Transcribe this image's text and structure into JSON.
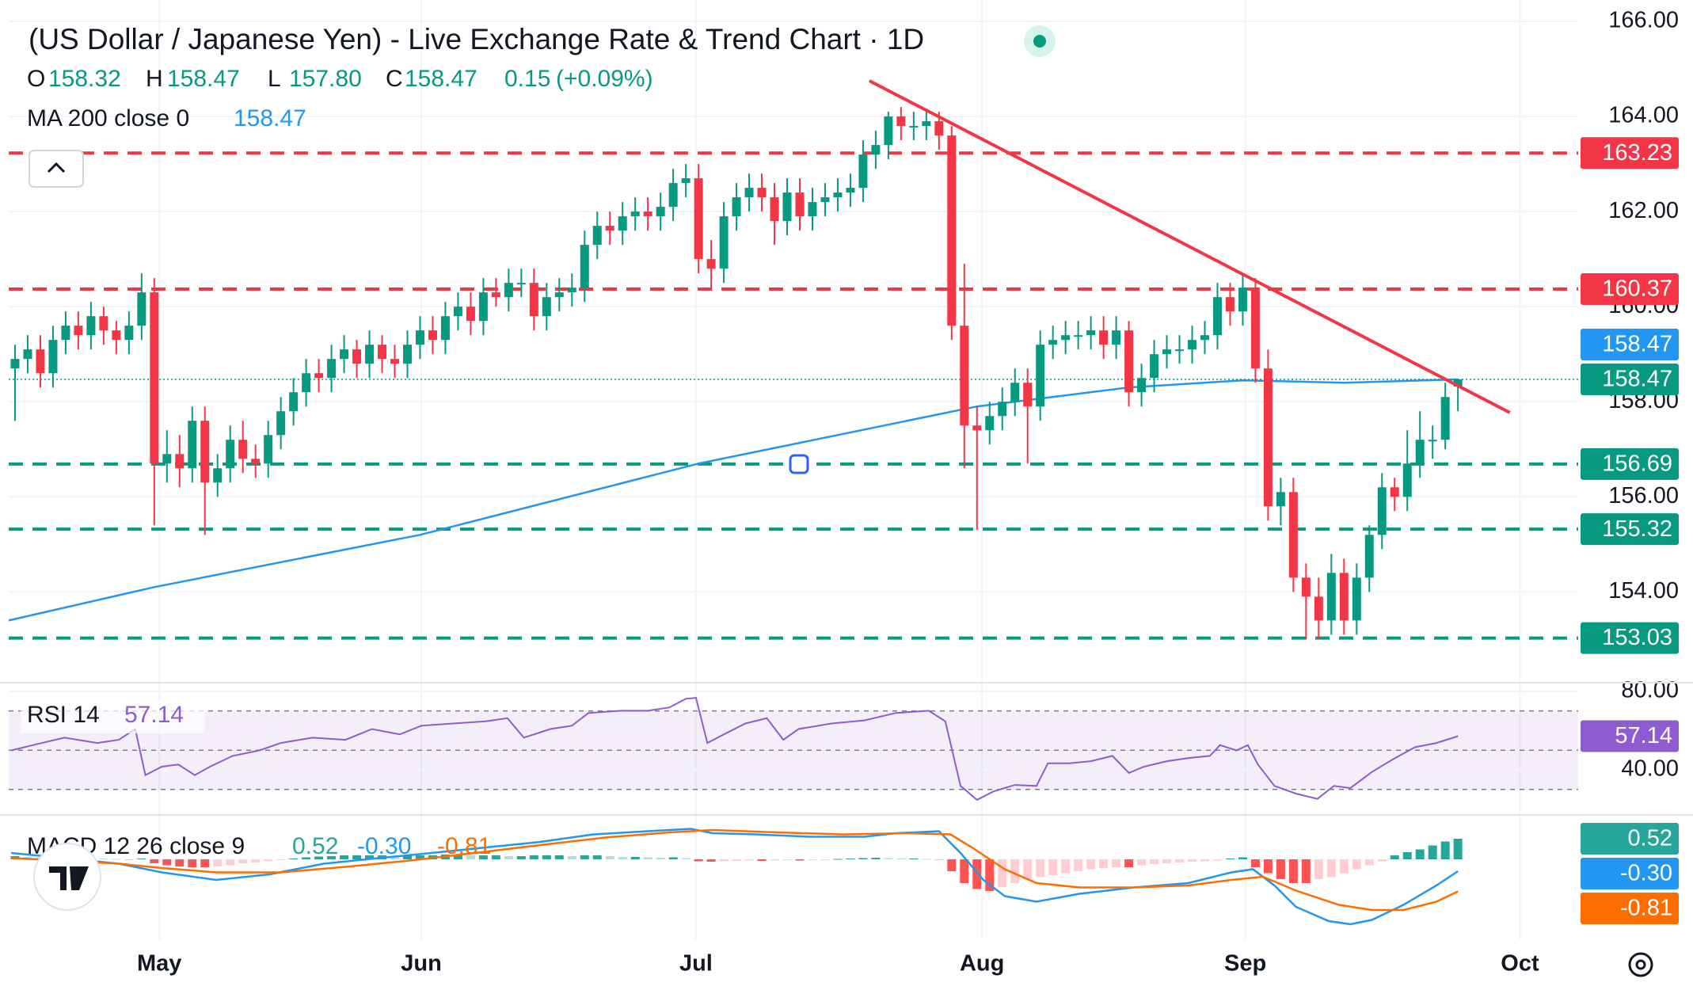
{
  "chart_data": {
    "type": "candlestick",
    "title": "(US Dollar / Japanese Yen) - Live Exchange Rate & Trend Chart · 1D",
    "ohlc_legend": [
      "O",
      "158.32",
      "H",
      "158.47",
      "L",
      "157.80",
      "C",
      "158.47",
      "0.15",
      "(+0.09%)"
    ],
    "xlim": [
      -0.5,
      123.5
    ],
    "xticks": [
      {
        "value": 11.4,
        "label": "May"
      },
      {
        "value": 32.1,
        "label": "Jun"
      },
      {
        "value": 53.8,
        "label": "Jul"
      },
      {
        "value": 76.4,
        "label": "Aug"
      },
      {
        "value": 97.2,
        "label": "Sep"
      },
      {
        "value": 118.9,
        "label": "Oct"
      }
    ],
    "ylim": [
      152.09,
      166.45
    ],
    "yticks": [
      {
        "value": 154,
        "label": "154.00"
      },
      {
        "value": 156,
        "label": "156.00"
      },
      {
        "value": 158,
        "label": "158.00"
      },
      {
        "value": 160,
        "label": "160.00"
      },
      {
        "value": 162,
        "label": "162.00"
      },
      {
        "value": 164,
        "label": "164.00"
      },
      {
        "value": 166,
        "label": "166.00"
      }
    ],
    "grid": true,
    "colors": {
      "up": "#089981",
      "down": "#f23645"
    },
    "candles": {
      "open": [
        158.7,
        158.9,
        159.1,
        158.6,
        159.3,
        159.6,
        159.4,
        159.8,
        159.5,
        159.3,
        159.6,
        160.3,
        156.7,
        156.9,
        156.6,
        157.6,
        156.3,
        156.6,
        157.2,
        156.8,
        156.7,
        157.3,
        157.8,
        158.2,
        158.6,
        158.5,
        158.9,
        159.1,
        158.8,
        159.2,
        158.9,
        158.8,
        159.2,
        159.5,
        159.3,
        159.8,
        160.0,
        159.7,
        160.3,
        160.2,
        160.5,
        160.5,
        159.8,
        160.2,
        160.3,
        160.4,
        161.3,
        161.7,
        161.6,
        161.9,
        162.0,
        161.9,
        162.1,
        162.6,
        162.7,
        161.0,
        160.8,
        161.9,
        162.3,
        162.5,
        162.3,
        161.8,
        162.4,
        161.9,
        162.2,
        162.3,
        162.4,
        162.5,
        163.2,
        163.4,
        164.0,
        163.8,
        163.8,
        163.9,
        163.6,
        159.6,
        157.5,
        157.4,
        157.7,
        158.0,
        158.4,
        157.9,
        159.2,
        159.3,
        159.4,
        159.4,
        159.5,
        159.2,
        159.5,
        158.2,
        158.5,
        159.0,
        159.1,
        159.1,
        159.3,
        159.4,
        160.2,
        159.9,
        160.4,
        158.7,
        155.8,
        156.1,
        154.3,
        153.9,
        153.4,
        154.4,
        153.4,
        154.3,
        155.2,
        156.2,
        156.0,
        156.7,
        157.2,
        157.2,
        158.32
      ],
      "high": [
        159.2,
        159.4,
        159.4,
        159.6,
        159.9,
        159.9,
        160.1,
        160.0,
        159.7,
        159.9,
        160.7,
        160.6,
        157.4,
        157.3,
        157.9,
        157.9,
        156.9,
        157.5,
        157.6,
        157.1,
        157.6,
        158.1,
        158.5,
        158.9,
        158.9,
        159.2,
        159.4,
        159.3,
        159.5,
        159.4,
        159.2,
        159.5,
        159.8,
        159.8,
        160.1,
        160.3,
        160.3,
        160.6,
        160.6,
        160.8,
        160.8,
        160.8,
        160.5,
        160.6,
        160.7,
        161.6,
        162.0,
        162.0,
        162.2,
        162.3,
        162.3,
        162.4,
        162.9,
        163.0,
        163.0,
        161.4,
        162.2,
        162.6,
        162.8,
        162.8,
        162.6,
        162.7,
        162.7,
        162.5,
        162.6,
        162.7,
        162.8,
        163.5,
        163.7,
        164.1,
        164.2,
        164.1,
        164.1,
        164.1,
        163.8,
        160.9,
        157.9,
        158.0,
        158.3,
        158.7,
        158.7,
        159.5,
        159.6,
        159.7,
        159.7,
        159.8,
        159.8,
        159.8,
        159.7,
        158.8,
        159.3,
        159.4,
        159.4,
        159.6,
        159.7,
        160.5,
        160.5,
        160.7,
        160.6,
        159.1,
        156.4,
        156.4,
        154.6,
        154.3,
        154.8,
        154.7,
        154.6,
        155.4,
        156.5,
        156.4,
        157.4,
        157.8,
        157.5,
        158.4,
        158.47
      ],
      "low": [
        157.6,
        158.6,
        158.3,
        158.3,
        159.0,
        159.1,
        159.1,
        159.2,
        159.0,
        159.0,
        159.3,
        155.4,
        156.3,
        156.2,
        156.3,
        155.2,
        156.0,
        156.3,
        156.5,
        156.4,
        156.4,
        157.0,
        157.5,
        157.9,
        158.2,
        158.2,
        158.6,
        158.5,
        158.5,
        158.6,
        158.5,
        158.5,
        158.9,
        159.0,
        159.0,
        159.5,
        159.4,
        159.4,
        160.0,
        159.9,
        160.2,
        159.5,
        159.5,
        159.9,
        160.0,
        160.1,
        161.0,
        161.3,
        161.3,
        161.6,
        161.6,
        161.6,
        161.8,
        162.3,
        160.7,
        160.4,
        160.5,
        161.6,
        162.0,
        162.0,
        161.3,
        161.5,
        161.6,
        161.6,
        161.9,
        162.0,
        162.1,
        162.2,
        162.9,
        163.1,
        163.5,
        163.5,
        163.5,
        163.3,
        159.3,
        156.6,
        155.3,
        157.1,
        157.4,
        157.7,
        156.7,
        157.6,
        158.9,
        159.0,
        159.1,
        159.1,
        158.9,
        158.9,
        157.9,
        157.9,
        158.2,
        158.7,
        158.8,
        158.8,
        159.0,
        159.1,
        159.6,
        159.6,
        158.4,
        155.5,
        155.4,
        154.0,
        153.0,
        153.0,
        153.1,
        153.1,
        153.1,
        154.0,
        154.9,
        155.7,
        155.7,
        156.4,
        156.8,
        157.0,
        157.8
      ],
      "close": [
        158.9,
        159.1,
        158.6,
        159.3,
        159.6,
        159.4,
        159.8,
        159.5,
        159.3,
        159.6,
        160.3,
        156.7,
        156.9,
        156.6,
        157.6,
        156.3,
        156.6,
        157.2,
        156.8,
        156.7,
        157.3,
        157.8,
        158.2,
        158.6,
        158.5,
        158.9,
        159.1,
        158.8,
        159.2,
        158.9,
        158.8,
        159.2,
        159.5,
        159.3,
        159.8,
        160.0,
        159.7,
        160.3,
        160.2,
        160.5,
        160.5,
        159.8,
        160.2,
        160.3,
        160.4,
        161.3,
        161.7,
        161.6,
        161.9,
        162.0,
        161.9,
        162.1,
        162.6,
        162.7,
        161.0,
        160.8,
        161.9,
        162.3,
        162.5,
        162.3,
        161.8,
        162.4,
        161.9,
        162.2,
        162.3,
        162.4,
        162.5,
        163.2,
        163.4,
        164.0,
        163.8,
        163.8,
        163.9,
        163.6,
        159.6,
        157.5,
        157.4,
        157.7,
        158.0,
        158.4,
        157.9,
        159.2,
        159.3,
        159.4,
        159.4,
        159.5,
        159.2,
        159.5,
        158.2,
        158.5,
        159.0,
        159.1,
        159.1,
        159.3,
        159.4,
        160.2,
        159.9,
        160.4,
        158.7,
        155.8,
        156.1,
        154.3,
        153.9,
        153.4,
        154.4,
        153.4,
        154.3,
        155.2,
        156.2,
        156.0,
        156.7,
        157.2,
        157.2,
        158.1,
        158.47
      ]
    },
    "ma": {
      "label": "MA 200 close 0",
      "color": "#2196f3",
      "x": [
        -0.5,
        11,
        32,
        54,
        65,
        76,
        88,
        97,
        105,
        114
      ],
      "values": [
        153.4,
        154.1,
        155.2,
        156.7,
        157.3,
        157.9,
        158.3,
        158.45,
        158.4,
        158.47
      ]
    },
    "trendline": {
      "color": "#f23645",
      "x": [
        67.5,
        118.1
      ],
      "values": [
        164.75,
        157.77
      ]
    },
    "levels": [
      {
        "price": 163.23,
        "color": "#f23645"
      },
      {
        "price": 160.37,
        "color": "#f23645"
      },
      {
        "price": 156.69,
        "color": "#089981"
      },
      {
        "price": 155.32,
        "color": "#089981"
      },
      {
        "price": 153.03,
        "color": "#089981"
      }
    ],
    "rsi": {
      "label": "RSI 14",
      "color": "#8e5cd0",
      "ylim": [
        17.0,
        84.4
      ],
      "yticks": [
        {
          "value": 40,
          "label": "40.00"
        },
        {
          "value": 80,
          "label": "80.00"
        }
      ],
      "bands": [
        70,
        50,
        30
      ],
      "x": [
        -0.3,
        1.4,
        3.9,
        6.5,
        8.2,
        9.5,
        10.3,
        11.6,
        12.9,
        14.2,
        15.4,
        17.2,
        19.3,
        21.0,
        23.5,
        26.1,
        28.2,
        30.4,
        32.1,
        34.6,
        37.2,
        38.9,
        40.2,
        42.3,
        44.0,
        45.3,
        47.9,
        50.0,
        51.7,
        53.0,
        53.8,
        54.7,
        56.0,
        57.7,
        59.4,
        60.7,
        61.9,
        64.5,
        67.1,
        69.6,
        72.2,
        73.5,
        74.7,
        76.0,
        77.3,
        79.0,
        80.7,
        81.6,
        83.3,
        85.0,
        86.7,
        88.0,
        89.2,
        91.0,
        92.7,
        94.4,
        95.2,
        96.5,
        97.4,
        98.2,
        99.5,
        101.2,
        102.9,
        104.2,
        105.5,
        107.2,
        108.9,
        110.6,
        112.3,
        114
      ],
      "values": [
        49.9,
        52.6,
        56.4,
        53.7,
        55.3,
        60.8,
        37.3,
        41.6,
        42.7,
        37.3,
        41.6,
        47.1,
        49.9,
        53.7,
        56.4,
        55.3,
        60.8,
        58.1,
        62.5,
        63.6,
        64.7,
        66.3,
        56.4,
        60.8,
        62.5,
        69.0,
        70.1,
        70.1,
        71.8,
        76.2,
        76.7,
        53.7,
        58.1,
        63.6,
        66.3,
        55.3,
        60.8,
        63.6,
        65.2,
        69.0,
        70.1,
        64.7,
        31.8,
        24.7,
        29.0,
        32.3,
        31.8,
        43.3,
        43.3,
        44.4,
        47.1,
        38.4,
        41.6,
        44.4,
        46.0,
        47.1,
        52.6,
        49.9,
        52.6,
        42.7,
        31.8,
        27.9,
        25.2,
        31.8,
        30.7,
        38.9,
        45.5,
        51.5,
        53.7,
        57.14
      ]
    },
    "macd": {
      "label": "MACD 12 26 close 9",
      "ylim": [
        -2.02,
        1.12
      ],
      "histogram": [
        0.08,
        0.06,
        0.05,
        0.04,
        0.05,
        0.04,
        0.03,
        0.02,
        0.01,
        0.0,
        0.02,
        -0.1,
        -0.15,
        -0.18,
        -0.2,
        -0.2,
        -0.18,
        -0.15,
        -0.1,
        -0.08,
        -0.05,
        -0.02,
        0.02,
        0.05,
        0.07,
        0.08,
        0.1,
        0.1,
        0.1,
        0.1,
        0.08,
        0.1,
        0.1,
        0.1,
        0.12,
        0.12,
        0.1,
        0.1,
        0.1,
        0.08,
        0.08,
        0.1,
        0.1,
        0.1,
        0.08,
        0.1,
        0.1,
        0.08,
        0.06,
        0.06,
        0.05,
        0.04,
        0.05,
        0.03,
        -0.05,
        -0.06,
        -0.05,
        -0.04,
        -0.03,
        -0.04,
        -0.03,
        -0.02,
        -0.03,
        -0.02,
        -0.01,
        0.01,
        0.02,
        0.03,
        0.04,
        0.03,
        0.02,
        0.02,
        0.01,
        0.0,
        -0.3,
        -0.6,
        -0.75,
        -0.8,
        -0.7,
        -0.6,
        -0.5,
        -0.45,
        -0.4,
        -0.35,
        -0.3,
        -0.25,
        -0.22,
        -0.2,
        -0.2,
        -0.15,
        -0.12,
        -0.1,
        -0.08,
        -0.06,
        -0.05,
        -0.03,
        0.02,
        0.05,
        -0.2,
        -0.35,
        -0.5,
        -0.6,
        -0.6,
        -0.5,
        -0.45,
        -0.35,
        -0.25,
        -0.15,
        -0.05,
        0.1,
        0.18,
        0.25,
        0.35,
        0.45,
        0.52
      ],
      "macd": {
        "color": "#2196f3",
        "x": [
          -0.3,
          3.9,
          8.2,
          11.6,
          15.9,
          20.1,
          24.4,
          28.7,
          32.9,
          37.2,
          41.5,
          45.7,
          50.0,
          53.4,
          55.1,
          58.5,
          62.8,
          67.1,
          69.6,
          73.0,
          74.7,
          76.5,
          78.2,
          80.7,
          84.1,
          88.4,
          92.7,
          96.1,
          97.8,
          99.5,
          101.2,
          103.8,
          105.5,
          107.2,
          109.7,
          112.3,
          114
        ],
        "values": [
          0.16,
          0.03,
          -0.11,
          -0.33,
          -0.52,
          -0.38,
          -0.11,
          0.03,
          0.16,
          0.3,
          0.44,
          0.63,
          0.71,
          0.77,
          0.66,
          0.63,
          0.57,
          0.57,
          0.66,
          0.71,
          0.16,
          -0.52,
          -0.93,
          -1.07,
          -0.87,
          -0.71,
          -0.6,
          -0.33,
          -0.25,
          -0.66,
          -1.2,
          -1.56,
          -1.64,
          -1.53,
          -1.15,
          -0.66,
          -0.3
        ]
      },
      "signal": {
        "color": "#ff6d00",
        "x": [
          -0.3,
          3.9,
          8.2,
          11.6,
          15.9,
          21.0,
          26.1,
          31.2,
          36.3,
          41.5,
          46.6,
          51.7,
          55.1,
          60.2,
          65.4,
          70.5,
          73.9,
          75.6,
          78.2,
          80.7,
          84.1,
          88.4,
          92.7,
          96.1,
          98.6,
          101.2,
          104.6,
          107.2,
          109.7,
          112.3,
          114
        ],
        "values": [
          0.03,
          -0.03,
          -0.11,
          -0.22,
          -0.33,
          -0.33,
          -0.19,
          -0.03,
          0.16,
          0.36,
          0.55,
          0.68,
          0.74,
          0.68,
          0.63,
          0.66,
          0.63,
          0.3,
          -0.25,
          -0.6,
          -0.71,
          -0.71,
          -0.66,
          -0.52,
          -0.44,
          -0.79,
          -1.15,
          -1.28,
          -1.28,
          -1.07,
          -0.81
        ]
      },
      "last_labels": [
        "0.52",
        "-0.30",
        "-0.81"
      ]
    }
  }
}
